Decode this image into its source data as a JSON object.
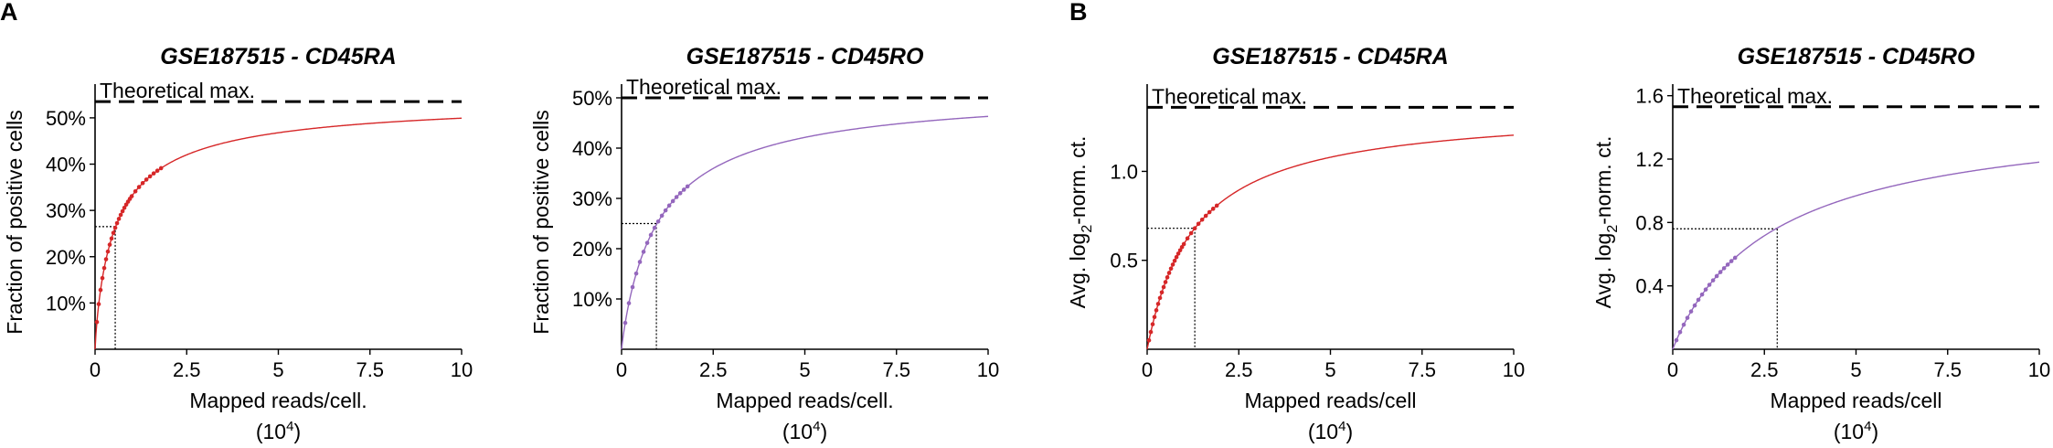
{
  "panel_labels": [
    "A",
    "B"
  ],
  "chart_data": [
    {
      "type": "line",
      "title": "GSE187515 - CD45RA",
      "xlabel": "Mapped reads/cell.",
      "xunit_base": "(10",
      "xunit_exp": "4",
      "xunit_close": ")",
      "ylabel": "Fraction of positive cells",
      "ylabel_sub": "",
      "ylabel_after": "",
      "xlim": [
        0,
        10
      ],
      "ylim": [
        0,
        0.565
      ],
      "xticks": [
        0,
        2.5,
        5,
        7.5,
        10
      ],
      "xtick_labels": [
        "0",
        "2.5",
        "5",
        "7.5",
        "10"
      ],
      "yticks": [
        0.1,
        0.2,
        0.3,
        0.4,
        0.5
      ],
      "ytick_labels": [
        "10%",
        "20%",
        "30%",
        "40%",
        "50%"
      ],
      "theoretical_max": 0.535,
      "theoretical_label": "Theoretical max.",
      "marker": {
        "x": 0.55,
        "y": 0.265
      },
      "curve": {
        "ymax": 0.545,
        "half": 0.6,
        "hill": 0.85
      },
      "points_x": [
        0.05,
        0.1,
        0.15,
        0.2,
        0.25,
        0.3,
        0.35,
        0.4,
        0.45,
        0.5,
        0.55,
        0.6,
        0.65,
        0.7,
        0.75,
        0.8,
        0.85,
        0.9,
        0.95,
        1.0,
        1.1,
        1.2,
        1.3,
        1.4,
        1.5,
        1.6,
        1.7,
        1.8
      ],
      "color": "#d62728"
    },
    {
      "type": "line",
      "title": "GSE187515 - CD45RO",
      "xlabel": "Mapped reads/cell.",
      "xunit_base": "(10",
      "xunit_exp": "4",
      "xunit_close": ")",
      "ylabel": "Fraction of positive cells",
      "ylabel_sub": "",
      "ylabel_after": "",
      "xlim": [
        0,
        10
      ],
      "ylim": [
        0,
        0.52
      ],
      "xticks": [
        0,
        2.5,
        5,
        7.5,
        10
      ],
      "xtick_labels": [
        "0",
        "2.5",
        "5",
        "7.5",
        "10"
      ],
      "yticks": [
        0.1,
        0.2,
        0.3,
        0.4,
        0.5
      ],
      "ytick_labels": [
        "10%",
        "20%",
        "30%",
        "40%",
        "50%"
      ],
      "theoretical_max": 0.5,
      "theoretical_label": "Theoretical max.",
      "marker": {
        "x": 0.95,
        "y": 0.25
      },
      "curve": {
        "ymax": 0.52,
        "half": 1.05,
        "hill": 0.93
      },
      "points_x": [
        0.1,
        0.2,
        0.3,
        0.4,
        0.5,
        0.6,
        0.7,
        0.8,
        0.9,
        1.0,
        1.1,
        1.2,
        1.3,
        1.4,
        1.5,
        1.6,
        1.7,
        1.8
      ],
      "color": "#9467bd"
    },
    {
      "type": "line",
      "title": "GSE187515 - CD45RA",
      "xlabel": "Mapped reads/cell",
      "xunit_base": "(10",
      "xunit_exp": "4",
      "xunit_close": ")",
      "ylabel": "Avg. log",
      "ylabel_sub": "2",
      "ylabel_after": "-norm. ct.",
      "xlim": [
        0,
        10
      ],
      "ylim": [
        0,
        1.47
      ],
      "xticks": [
        0,
        2.5,
        5,
        7.5,
        10
      ],
      "xtick_labels": [
        "0",
        "2.5",
        "5",
        "7.5",
        "10"
      ],
      "yticks": [
        0.5,
        1.0
      ],
      "ytick_labels": [
        "0.5",
        "1.0"
      ],
      "theoretical_max": 1.36,
      "theoretical_label": "Theoretical max.",
      "marker": {
        "x": 1.3,
        "y": 0.68
      },
      "curve": {
        "ymax": 1.36,
        "half": 1.3,
        "hill": 1.0
      },
      "points_x": [
        0.05,
        0.1,
        0.15,
        0.2,
        0.25,
        0.3,
        0.35,
        0.4,
        0.45,
        0.5,
        0.55,
        0.6,
        0.65,
        0.7,
        0.75,
        0.8,
        0.85,
        0.9,
        0.95,
        1.0,
        1.1,
        1.2,
        1.3,
        1.4,
        1.5,
        1.6,
        1.7,
        1.8,
        1.9
      ],
      "color": "#d62728"
    },
    {
      "type": "line",
      "title": "GSE187515 - CD45RO",
      "xlabel": "Mapped reads/cell",
      "xunit_base": "(10",
      "xunit_exp": "4",
      "xunit_close": ")",
      "ylabel": "Avg. log",
      "ylabel_sub": "2",
      "ylabel_after": "-norm. ct.",
      "xlim": [
        0,
        10
      ],
      "ylim": [
        0,
        1.65
      ],
      "xticks": [
        0,
        2.5,
        5,
        7.5,
        10
      ],
      "xtick_labels": [
        "0",
        "2.5",
        "5",
        "7.5",
        "10"
      ],
      "yticks": [
        0.4,
        0.8,
        1.2,
        1.6
      ],
      "ytick_labels": [
        "0.4",
        "0.8",
        "1.2",
        "1.6"
      ],
      "theoretical_max": 1.53,
      "theoretical_label": "Theoretical max.",
      "marker": {
        "x": 2.85,
        "y": 0.76
      },
      "curve": {
        "ymax": 1.53,
        "half": 2.85,
        "hill": 0.97
      },
      "points_x": [
        0.1,
        0.2,
        0.3,
        0.4,
        0.5,
        0.6,
        0.7,
        0.8,
        0.9,
        1.0,
        1.1,
        1.2,
        1.3,
        1.4,
        1.5,
        1.6,
        1.7
      ],
      "color": "#9467bd"
    }
  ]
}
